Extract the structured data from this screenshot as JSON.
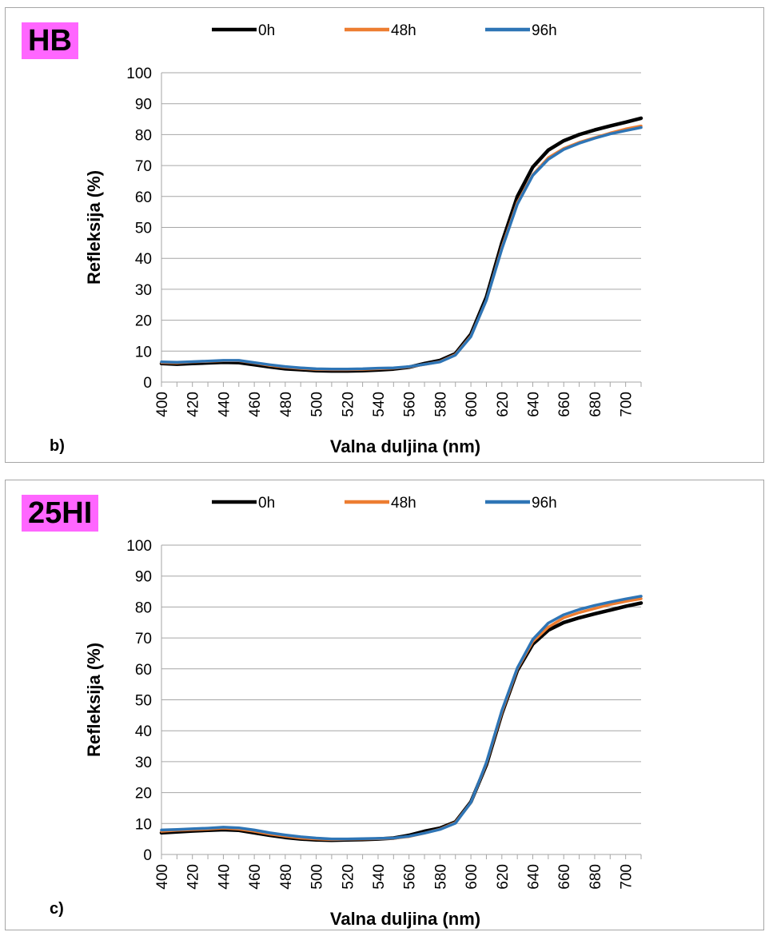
{
  "chart_data": [
    {
      "type": "line",
      "tag": "HB",
      "panel_letter": "b)",
      "xlabel": "Valna duljina (nm)",
      "ylabel": "Refleksija (%)",
      "ylim": [
        0,
        100
      ],
      "y_ticks": [
        "0",
        "10",
        "20",
        "30",
        "40",
        "50",
        "60",
        "70",
        "80",
        "90",
        "100"
      ],
      "x_tick_labels": [
        "400",
        "420",
        "440",
        "460",
        "480",
        "500",
        "520",
        "540",
        "560",
        "580",
        "600",
        "620",
        "640",
        "660",
        "680",
        "700"
      ],
      "grid": "horizontal",
      "legend_position": "top",
      "x": [
        400,
        410,
        420,
        430,
        440,
        450,
        460,
        470,
        480,
        490,
        500,
        510,
        520,
        530,
        540,
        550,
        560,
        570,
        580,
        590,
        600,
        610,
        620,
        630,
        640,
        650,
        660,
        670,
        680,
        690,
        700,
        710
      ],
      "series": [
        {
          "name": "0h",
          "color": "#000000",
          "values": [
            6.0,
            5.8,
            6.0,
            6.2,
            6.4,
            6.3,
            5.6,
            4.9,
            4.3,
            4.0,
            3.7,
            3.6,
            3.6,
            3.7,
            3.9,
            4.2,
            4.8,
            6.0,
            7.0,
            9.2,
            15.5,
            27.5,
            45.0,
            60.0,
            69.5,
            75.0,
            78.0,
            80.0,
            81.5,
            82.8,
            84.0,
            85.3
          ]
        },
        {
          "name": "48h",
          "color": "#ed7d31",
          "values": [
            6.3,
            6.2,
            6.5,
            6.7,
            6.9,
            6.9,
            6.2,
            5.4,
            4.8,
            4.4,
            4.1,
            4.0,
            4.0,
            4.1,
            4.3,
            4.5,
            4.9,
            5.7,
            6.6,
            8.9,
            14.9,
            26.5,
            43.5,
            58.0,
            67.0,
            72.5,
            75.5,
            77.5,
            79.0,
            80.5,
            81.8,
            82.8
          ]
        },
        {
          "name": "96h",
          "color": "#2e75b6",
          "values": [
            6.5,
            6.4,
            6.6,
            6.8,
            7.0,
            7.0,
            6.3,
            5.6,
            5.0,
            4.6,
            4.3,
            4.2,
            4.2,
            4.3,
            4.5,
            4.6,
            5.0,
            5.7,
            6.5,
            8.7,
            14.7,
            26.5,
            43.0,
            57.5,
            66.8,
            72.0,
            75.2,
            77.2,
            78.8,
            80.2,
            81.3,
            82.3
          ]
        }
      ]
    },
    {
      "type": "line",
      "tag": "25HI",
      "panel_letter": "c)",
      "xlabel": "Valna duljina (nm)",
      "ylabel": "Refleksija (%)",
      "ylim": [
        0,
        100
      ],
      "y_ticks": [
        "0",
        "10",
        "20",
        "30",
        "40",
        "50",
        "60",
        "70",
        "80",
        "90",
        "100"
      ],
      "x_tick_labels": [
        "400",
        "420",
        "440",
        "460",
        "480",
        "500",
        "520",
        "540",
        "560",
        "580",
        "600",
        "620",
        "640",
        "660",
        "680",
        "700"
      ],
      "grid": "horizontal",
      "legend_position": "top",
      "x": [
        400,
        410,
        420,
        430,
        440,
        450,
        460,
        470,
        480,
        490,
        500,
        510,
        520,
        530,
        540,
        550,
        560,
        570,
        580,
        590,
        600,
        610,
        620,
        630,
        640,
        650,
        660,
        670,
        680,
        690,
        700,
        710
      ],
      "series": [
        {
          "name": "0h",
          "color": "#000000",
          "values": [
            7.0,
            7.3,
            7.6,
            7.8,
            8.0,
            7.8,
            7.0,
            6.2,
            5.5,
            5.0,
            4.7,
            4.6,
            4.7,
            4.8,
            5.0,
            5.3,
            6.2,
            7.5,
            8.5,
            10.5,
            17.0,
            29.0,
            45.5,
            59.5,
            68.0,
            72.5,
            75.0,
            76.5,
            77.8,
            79.0,
            80.2,
            81.3
          ]
        },
        {
          "name": "48h",
          "color": "#ed7d31",
          "values": [
            7.5,
            7.8,
            8.0,
            8.2,
            8.5,
            8.2,
            7.5,
            6.6,
            5.9,
            5.3,
            5.0,
            4.8,
            4.9,
            5.0,
            5.1,
            5.2,
            5.8,
            6.9,
            8.2,
            10.3,
            16.8,
            29.5,
            46.0,
            60.0,
            68.8,
            73.5,
            76.5,
            78.2,
            79.5,
            80.8,
            81.8,
            82.7
          ]
        },
        {
          "name": "96h",
          "color": "#2e75b6",
          "values": [
            7.9,
            8.1,
            8.3,
            8.5,
            8.8,
            8.6,
            7.9,
            7.0,
            6.3,
            5.7,
            5.3,
            5.0,
            5.0,
            5.1,
            5.2,
            5.3,
            5.9,
            6.9,
            8.1,
            10.1,
            16.8,
            29.8,
            46.5,
            60.3,
            69.5,
            74.8,
            77.5,
            79.2,
            80.5,
            81.6,
            82.6,
            83.5
          ]
        }
      ]
    }
  ]
}
